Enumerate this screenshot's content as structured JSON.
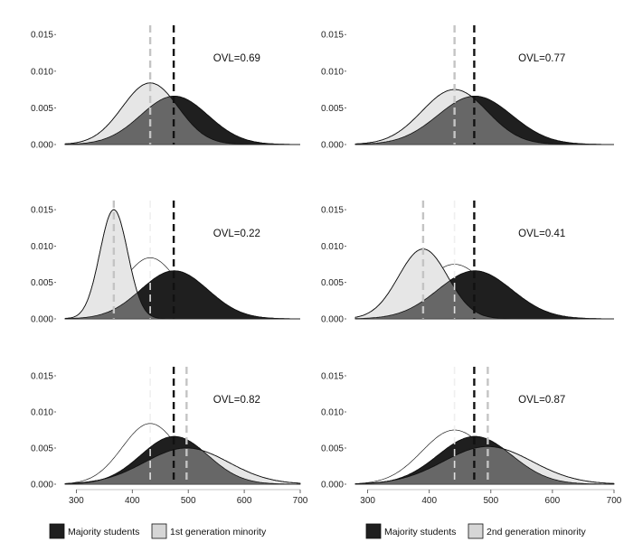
{
  "colors": {
    "majority_fill": "#1f1f1f",
    "overlap_fill": "#676767",
    "minority_fill": "#e6e6e6",
    "outline": "#111111",
    "majority_line": "#111111",
    "minority_line": "#c4c4c4",
    "legend_minority_fill": "#d6d6d6"
  },
  "legends": [
    {
      "swatch1_label": "Majority students",
      "swatch2_label": "1st generation minority"
    },
    {
      "swatch1_label": "Majority students",
      "swatch2_label": "2nd generation minority"
    }
  ],
  "chart_data": [
    {
      "type": "area",
      "panel": "row1-left",
      "ovl_label": "OVL=0.69",
      "xlim": [
        280,
        700
      ],
      "ylim": [
        0,
        0.017
      ],
      "xticks": [
        300,
        400,
        500,
        600,
        700
      ],
      "show_xticks": false,
      "yticks": [
        0,
        0.005,
        0.01,
        0.015
      ],
      "ytick_labels": [
        "0.000",
        "0.005",
        "0.010",
        "0.015"
      ],
      "series": [
        {
          "role": "majority",
          "mean": 475,
          "sd": 60,
          "peak": 0.0066
        },
        {
          "role": "minority",
          "mean": 432,
          "sd": 50,
          "peak": 0.0084
        }
      ],
      "faint_curve": null,
      "vlines": [
        {
          "role": "minority",
          "x": 432
        },
        {
          "role": "majority",
          "x": 474
        }
      ]
    },
    {
      "type": "area",
      "panel": "row1-right",
      "ovl_label": "OVL=0.77",
      "xlim": [
        280,
        700
      ],
      "ylim": [
        0,
        0.017
      ],
      "xticks": [
        300,
        400,
        500,
        600,
        700
      ],
      "show_xticks": false,
      "yticks": [
        0,
        0.005,
        0.01,
        0.015
      ],
      "ytick_labels": [
        "0.000",
        "0.005",
        "0.010",
        "0.015"
      ],
      "series": [
        {
          "role": "majority",
          "mean": 474,
          "sd": 60,
          "peak": 0.0066
        },
        {
          "role": "minority",
          "mean": 441,
          "sd": 53,
          "peak": 0.0075
        }
      ],
      "faint_curve": null,
      "vlines": [
        {
          "role": "minority",
          "x": 441
        },
        {
          "role": "majority",
          "x": 473
        }
      ]
    },
    {
      "type": "area",
      "panel": "row2-left",
      "ovl_label": "OVL=0.22",
      "xlim": [
        280,
        700
      ],
      "ylim": [
        0,
        0.017
      ],
      "xticks": [
        300,
        400,
        500,
        600,
        700
      ],
      "show_xticks": false,
      "yticks": [
        0,
        0.005,
        0.01,
        0.015
      ],
      "ytick_labels": [
        "0.000",
        "0.005",
        "0.010",
        "0.015"
      ],
      "series": [
        {
          "role": "majority",
          "mean": 475,
          "sd": 60,
          "peak": 0.0066
        },
        {
          "role": "minority",
          "mean": 367,
          "sd": 25,
          "peak": 0.015
        }
      ],
      "faint_curve": {
        "mean": 432,
        "sd": 50,
        "peak": 0.0084
      },
      "vlines": [
        {
          "role": "faint",
          "x": 432
        },
        {
          "role": "minority",
          "x": 367
        },
        {
          "role": "majority",
          "x": 474
        }
      ]
    },
    {
      "type": "area",
      "panel": "row2-right",
      "ovl_label": "OVL=0.41",
      "xlim": [
        280,
        700
      ],
      "ylim": [
        0,
        0.017
      ],
      "xticks": [
        300,
        400,
        500,
        600,
        700
      ],
      "show_xticks": false,
      "yticks": [
        0,
        0.005,
        0.01,
        0.015
      ],
      "ytick_labels": [
        "0.000",
        "0.005",
        "0.010",
        "0.015"
      ],
      "series": [
        {
          "role": "majority",
          "mean": 474,
          "sd": 60,
          "peak": 0.0066
        },
        {
          "role": "minority",
          "mean": 390,
          "sd": 40,
          "peak": 0.0096
        }
      ],
      "faint_curve": {
        "mean": 441,
        "sd": 53,
        "peak": 0.0075
      },
      "vlines": [
        {
          "role": "faint",
          "x": 441
        },
        {
          "role": "minority",
          "x": 390
        },
        {
          "role": "majority",
          "x": 473
        }
      ]
    },
    {
      "type": "area",
      "panel": "row3-left",
      "ovl_label": "OVL=0.82",
      "xlim": [
        280,
        700
      ],
      "ylim": [
        0,
        0.017
      ],
      "xticks": [
        300,
        400,
        500,
        600,
        700
      ],
      "show_xticks": true,
      "yticks": [
        0,
        0.005,
        0.01,
        0.015
      ],
      "ytick_labels": [
        "0.000",
        "0.005",
        "0.010",
        "0.015"
      ],
      "series": [
        {
          "role": "majority",
          "mean": 475,
          "sd": 60,
          "peak": 0.0066
        },
        {
          "role": "minority",
          "mean": 497,
          "sd": 75,
          "peak": 0.005
        }
      ],
      "faint_curve": {
        "mean": 432,
        "sd": 50,
        "peak": 0.0084
      },
      "vlines": [
        {
          "role": "faint",
          "x": 432
        },
        {
          "role": "majority",
          "x": 474
        },
        {
          "role": "minority",
          "x": 497
        }
      ]
    },
    {
      "type": "area",
      "panel": "row3-right",
      "ovl_label": "OVL=0.87",
      "xlim": [
        280,
        700
      ],
      "ylim": [
        0,
        0.017
      ],
      "xticks": [
        300,
        400,
        500,
        600,
        700
      ],
      "show_xticks": true,
      "yticks": [
        0,
        0.005,
        0.01,
        0.015
      ],
      "ytick_labels": [
        "0.000",
        "0.005",
        "0.010",
        "0.015"
      ],
      "series": [
        {
          "role": "majority",
          "mean": 474,
          "sd": 60,
          "peak": 0.0066
        },
        {
          "role": "minority",
          "mean": 495,
          "sd": 72,
          "peak": 0.0052
        }
      ],
      "faint_curve": {
        "mean": 441,
        "sd": 53,
        "peak": 0.0075
      },
      "vlines": [
        {
          "role": "faint",
          "x": 441
        },
        {
          "role": "majority",
          "x": 473
        },
        {
          "role": "minority",
          "x": 495
        }
      ]
    }
  ]
}
